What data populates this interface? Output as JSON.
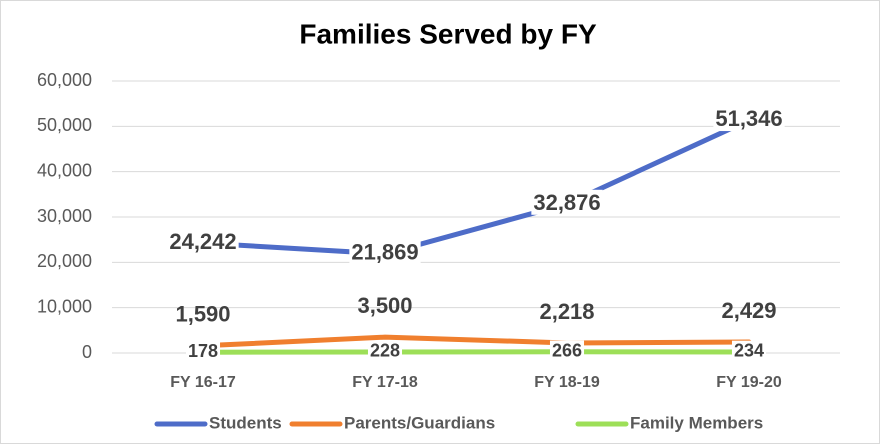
{
  "chart_data": {
    "type": "line",
    "title": "Families Served by FY",
    "categories": [
      "FY 16-17",
      "FY 17-18",
      "FY 18-19",
      "FY 19-20"
    ],
    "series": [
      {
        "name": "Students",
        "color": "#4e6cc8",
        "values": [
          24242,
          21869,
          32876,
          51346
        ],
        "value_labels": [
          "24,242",
          "21,869",
          "32,876",
          "51,346"
        ]
      },
      {
        "name": "Parents/Guardians",
        "color": "#f07f2e",
        "values": [
          1590,
          3500,
          2218,
          2429
        ],
        "value_labels": [
          "1,590",
          "3,500",
          "2,218",
          "2,429"
        ]
      },
      {
        "name": "Family Members",
        "color": "#9ddf58",
        "values": [
          178,
          228,
          266,
          234
        ],
        "value_labels": [
          "178",
          "228",
          "266",
          "234"
        ]
      }
    ],
    "ylim": [
      0,
      60000
    ],
    "yticks": [
      0,
      {
        "value": 10000,
        "label": "10,000"
      },
      {
        "value": 20000,
        "label": "20,000"
      },
      {
        "value": 30000,
        "label": "30,000"
      },
      {
        "value": 40000,
        "label": "40,000"
      },
      {
        "value": 50000,
        "label": "50,000"
      },
      {
        "value": 60000,
        "label": "60,000"
      }
    ],
    "grid": true,
    "legend": "bottom"
  }
}
